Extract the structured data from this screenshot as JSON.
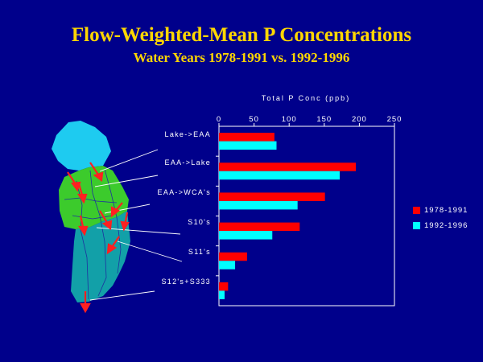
{
  "title": "Flow-Weighted-Mean P Concentrations",
  "subtitle": "Water Years  1978-1991  vs.  1992-1996",
  "chart_data": {
    "type": "bar",
    "orientation": "horizontal",
    "xlabel": "Total P Conc (ppb)",
    "xlim": [
      0,
      250
    ],
    "xticks": [
      0,
      50,
      100,
      150,
      200,
      250
    ],
    "categories": [
      "Lake->EAA",
      "EAA->Lake",
      "EAA->WCA's",
      "S10's",
      "S11's",
      "S12's+S333"
    ],
    "series": [
      {
        "name": "1978-1991",
        "color": "#FF0000",
        "values": [
          79,
          195,
          151,
          115,
          40,
          13
        ]
      },
      {
        "name": "1992-1996",
        "color": "#00FFFF",
        "values": [
          82,
          172,
          112,
          76,
          23,
          8
        ]
      }
    ],
    "legend_position": "right",
    "grid": false
  }
}
